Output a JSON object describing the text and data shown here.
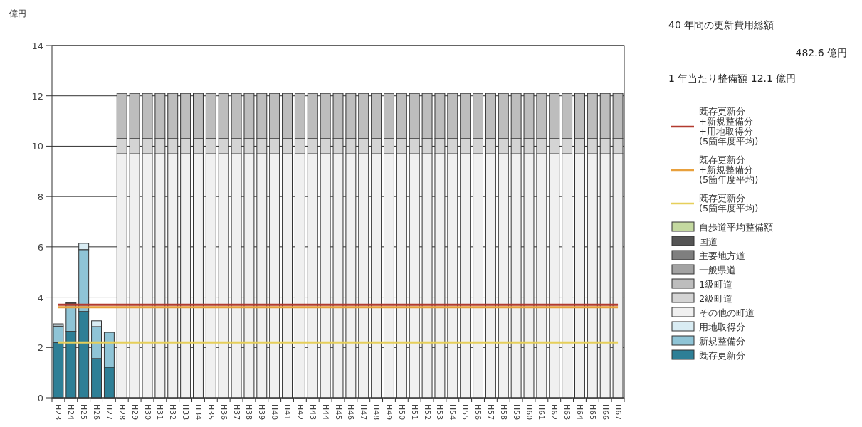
{
  "chart_data": {
    "type": "bar",
    "stacked": true,
    "ylabel": "億円",
    "annotations": [
      "40 年間の更新費用総額",
      "482.6 億円",
      "1 年当たり整備額 12.1 億円"
    ],
    "categories": [
      "H23",
      "H24",
      "H25",
      "H26",
      "H27",
      "H28",
      "H29",
      "H30",
      "H31",
      "H32",
      "H33",
      "H34",
      "H35",
      "H36",
      "H37",
      "H38",
      "H39",
      "H40",
      "H41",
      "H42",
      "H43",
      "H44",
      "H45",
      "H46",
      "H47",
      "H48",
      "H49",
      "H50",
      "H51",
      "H52",
      "H53",
      "H54",
      "H55",
      "H56",
      "H57",
      "H58",
      "H59",
      "H60",
      "H61",
      "H62",
      "H63",
      "H64",
      "H65",
      "H66",
      "H67"
    ],
    "ylim": [
      0,
      14
    ],
    "yticks": [
      0,
      2,
      4,
      6,
      8,
      10,
      12,
      14
    ],
    "grid": "y",
    "legend": "right",
    "series": [
      {
        "name": "既存更新分",
        "color": "#2e7f96",
        "values": [
          2.2,
          2.64,
          3.43,
          1.56,
          1.22,
          null,
          null,
          null,
          null,
          null,
          null,
          null,
          null,
          null,
          null,
          null,
          null,
          null,
          null,
          null,
          null,
          null,
          null,
          null,
          null,
          null,
          null,
          null,
          null,
          null,
          null,
          null,
          null,
          null,
          null,
          null,
          null,
          null,
          null,
          null,
          null,
          null,
          null,
          null,
          null
        ]
      },
      {
        "name": "新規整備分",
        "color": "#8fc4d6",
        "values": [
          0.65,
          1.09,
          2.46,
          1.27,
          1.38,
          null,
          null,
          null,
          null,
          null,
          null,
          null,
          null,
          null,
          null,
          null,
          null,
          null,
          null,
          null,
          null,
          null,
          null,
          null,
          null,
          null,
          null,
          null,
          null,
          null,
          null,
          null,
          null,
          null,
          null,
          null,
          null,
          null,
          null,
          null,
          null,
          null,
          null,
          null,
          null
        ]
      },
      {
        "name": "用地取得分",
        "color": "#d9ecf3",
        "values": [
          0.09,
          null,
          0.25,
          0.23,
          null,
          null,
          null,
          null,
          null,
          null,
          null,
          null,
          null,
          null,
          null,
          null,
          null,
          null,
          null,
          null,
          null,
          null,
          null,
          null,
          null,
          null,
          null,
          null,
          null,
          null,
          null,
          null,
          null,
          null,
          null,
          null,
          null,
          null,
          null,
          null,
          null,
          null,
          null,
          null,
          null
        ]
      },
      {
        "name": "その他の町道",
        "color": "#f0f0f0",
        "values": [
          null,
          null,
          null,
          null,
          null,
          9.7,
          9.7,
          9.7,
          9.7,
          9.7,
          9.7,
          9.7,
          9.7,
          9.7,
          9.7,
          9.7,
          9.7,
          9.7,
          9.7,
          9.7,
          9.7,
          9.7,
          9.7,
          9.7,
          9.7,
          9.7,
          9.7,
          9.7,
          9.7,
          9.7,
          9.7,
          9.7,
          9.7,
          9.7,
          9.7,
          9.7,
          9.7,
          9.7,
          9.7,
          9.7,
          9.7,
          9.7,
          9.7,
          9.7,
          9.7
        ]
      },
      {
        "name": "2級町道",
        "color": "#d4d4d4",
        "values": [
          null,
          null,
          null,
          null,
          null,
          0.6,
          0.6,
          0.6,
          0.6,
          0.6,
          0.6,
          0.6,
          0.6,
          0.6,
          0.6,
          0.6,
          0.6,
          0.6,
          0.6,
          0.6,
          0.6,
          0.6,
          0.6,
          0.6,
          0.6,
          0.6,
          0.6,
          0.6,
          0.6,
          0.6,
          0.6,
          0.6,
          0.6,
          0.6,
          0.6,
          0.6,
          0.6,
          0.6,
          0.6,
          0.6,
          0.6,
          0.6,
          0.6,
          0.6,
          0.6
        ]
      },
      {
        "name": "1級町道",
        "color": "#bdbdbd",
        "values": [
          null,
          null,
          null,
          null,
          null,
          1.8,
          1.8,
          1.8,
          1.8,
          1.8,
          1.8,
          1.8,
          1.8,
          1.8,
          1.8,
          1.8,
          1.8,
          1.8,
          1.8,
          1.8,
          1.8,
          1.8,
          1.8,
          1.8,
          1.8,
          1.8,
          1.8,
          1.8,
          1.8,
          1.8,
          1.8,
          1.8,
          1.8,
          1.8,
          1.8,
          1.8,
          1.8,
          1.8,
          1.8,
          1.8,
          1.8,
          1.8,
          1.8,
          1.8,
          1.8
        ]
      },
      {
        "name": "一般県道",
        "color": "#a3a3a3",
        "values": [
          null,
          null,
          null,
          null,
          null,
          null,
          null,
          null,
          null,
          null,
          null,
          null,
          null,
          null,
          null,
          null,
          null,
          null,
          null,
          null,
          null,
          null,
          null,
          null,
          null,
          null,
          null,
          null,
          null,
          null,
          null,
          null,
          null,
          null,
          null,
          null,
          null,
          null,
          null,
          null,
          null,
          null,
          null,
          null,
          null
        ]
      },
      {
        "name": "主要地方道",
        "color": "#7f7f7f",
        "values": [
          null,
          null,
          null,
          null,
          null,
          null,
          null,
          null,
          null,
          null,
          null,
          null,
          null,
          null,
          null,
          null,
          null,
          null,
          null,
          null,
          null,
          null,
          null,
          null,
          null,
          null,
          null,
          null,
          null,
          null,
          null,
          null,
          null,
          null,
          null,
          null,
          null,
          null,
          null,
          null,
          null,
          null,
          null,
          null,
          null
        ]
      },
      {
        "name": "国道",
        "color": "#555555",
        "values": [
          null,
          0.06,
          null,
          null,
          null,
          null,
          null,
          null,
          null,
          null,
          null,
          null,
          null,
          null,
          null,
          null,
          null,
          null,
          null,
          null,
          null,
          null,
          null,
          null,
          null,
          null,
          null,
          null,
          null,
          null,
          null,
          null,
          null,
          null,
          null,
          null,
          null,
          null,
          null,
          null,
          null,
          null,
          null,
          null,
          null
        ]
      },
      {
        "name": "自歩道平均整備額",
        "color": "#c4d9a0",
        "values": [
          null,
          null,
          null,
          null,
          null,
          null,
          null,
          null,
          null,
          null,
          null,
          null,
          null,
          null,
          null,
          null,
          null,
          null,
          null,
          null,
          null,
          null,
          null,
          null,
          null,
          null,
          null,
          null,
          null,
          null,
          null,
          null,
          null,
          null,
          null,
          null,
          null,
          null,
          null,
          null,
          null,
          null,
          null,
          null,
          null
        ]
      },
      {
        "type": "line",
        "name": "既存更新分\n+新規整備分\n+用地取得分\n(5箇年度平均)",
        "color": "#b23a2e",
        "values": [
          3.7,
          3.7,
          3.7,
          3.7,
          3.7,
          3.7,
          3.7,
          3.7,
          3.7,
          3.7,
          3.7,
          3.7,
          3.7,
          3.7,
          3.7,
          3.7,
          3.7,
          3.7,
          3.7,
          3.7,
          3.7,
          3.7,
          3.7,
          3.7,
          3.7,
          3.7,
          3.7,
          3.7,
          3.7,
          3.7,
          3.7,
          3.7,
          3.7,
          3.7,
          3.7,
          3.7,
          3.7,
          3.7,
          3.7,
          3.7,
          3.7,
          3.7,
          3.7,
          3.7,
          3.7
        ]
      },
      {
        "type": "line",
        "name": "既存更新分\n+新規整備分\n(5箇年度平均)",
        "color": "#e8a03c",
        "values": [
          3.6,
          3.6,
          3.6,
          3.6,
          3.6,
          3.6,
          3.6,
          3.6,
          3.6,
          3.6,
          3.6,
          3.6,
          3.6,
          3.6,
          3.6,
          3.6,
          3.6,
          3.6,
          3.6,
          3.6,
          3.6,
          3.6,
          3.6,
          3.6,
          3.6,
          3.6,
          3.6,
          3.6,
          3.6,
          3.6,
          3.6,
          3.6,
          3.6,
          3.6,
          3.6,
          3.6,
          3.6,
          3.6,
          3.6,
          3.6,
          3.6,
          3.6,
          3.6,
          3.6,
          3.6
        ]
      },
      {
        "type": "line",
        "name": "既存更新分\n(5箇年度平均)",
        "color": "#e6cf5a",
        "values": [
          2.2,
          2.2,
          2.2,
          2.2,
          2.2,
          2.2,
          2.2,
          2.2,
          2.2,
          2.2,
          2.2,
          2.2,
          2.2,
          2.2,
          2.2,
          2.2,
          2.2,
          2.2,
          2.2,
          2.2,
          2.2,
          2.2,
          2.2,
          2.2,
          2.2,
          2.2,
          2.2,
          2.2,
          2.2,
          2.2,
          2.2,
          2.2,
          2.2,
          2.2,
          2.2,
          2.2,
          2.2,
          2.2,
          2.2,
          2.2,
          2.2,
          2.2,
          2.2,
          2.2,
          2.2
        ]
      }
    ]
  }
}
